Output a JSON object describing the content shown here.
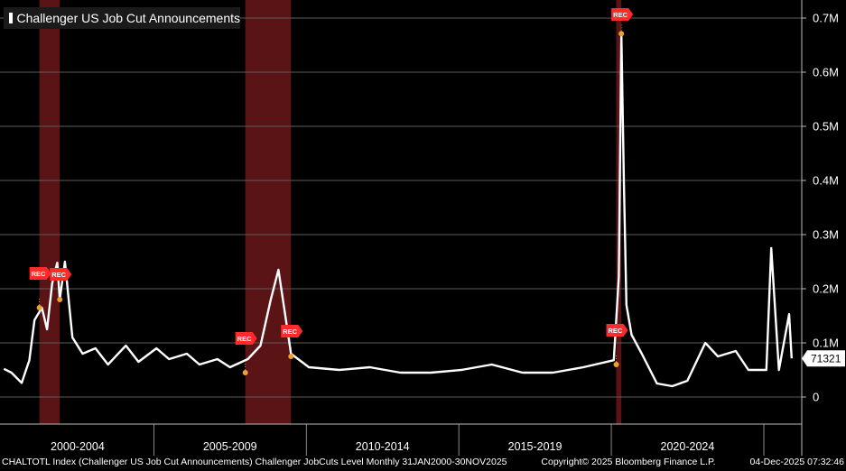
{
  "chart_data": {
    "type": "line",
    "title": "",
    "series": [
      {
        "name": "Challenger US Job Cut Announcements",
        "color": "#ffffff",
        "points": [
          [
            "2000-01-31",
            52000
          ],
          [
            "2000-04-30",
            45000
          ],
          [
            "2000-08-31",
            26000
          ],
          [
            "2000-11-30",
            68000
          ],
          [
            "2001-01-31",
            142000
          ],
          [
            "2001-04-30",
            165000
          ],
          [
            "2001-06-30",
            125000
          ],
          [
            "2001-08-31",
            210000
          ],
          [
            "2001-10-31",
            248000
          ],
          [
            "2001-11-30",
            180000
          ],
          [
            "2002-01-31",
            250000
          ],
          [
            "2002-04-30",
            110000
          ],
          [
            "2002-08-31",
            80000
          ],
          [
            "2003-01-31",
            90000
          ],
          [
            "2003-06-30",
            60000
          ],
          [
            "2004-01-31",
            95000
          ],
          [
            "2004-06-30",
            65000
          ],
          [
            "2005-01-31",
            90000
          ],
          [
            "2005-06-30",
            70000
          ],
          [
            "2006-01-31",
            80000
          ],
          [
            "2006-06-30",
            60000
          ],
          [
            "2007-01-31",
            70000
          ],
          [
            "2007-06-30",
            55000
          ],
          [
            "2008-01-31",
            70000
          ],
          [
            "2008-06-30",
            95000
          ],
          [
            "2008-10-31",
            180000
          ],
          [
            "2009-01-31",
            235000
          ],
          [
            "2009-06-30",
            80000
          ],
          [
            "2010-01-31",
            55000
          ],
          [
            "2011-01-31",
            50000
          ],
          [
            "2012-01-31",
            55000
          ],
          [
            "2013-01-31",
            45000
          ],
          [
            "2014-01-31",
            45000
          ],
          [
            "2015-01-31",
            50000
          ],
          [
            "2016-01-31",
            60000
          ],
          [
            "2017-01-31",
            45000
          ],
          [
            "2018-01-31",
            45000
          ],
          [
            "2019-01-31",
            55000
          ],
          [
            "2020-01-31",
            68000
          ],
          [
            "2020-03-31",
            222000
          ],
          [
            "2020-04-30",
            671000
          ],
          [
            "2020-05-31",
            397000
          ],
          [
            "2020-06-30",
            170000
          ],
          [
            "2020-08-31",
            115000
          ],
          [
            "2020-12-31",
            80000
          ],
          [
            "2021-06-30",
            25000
          ],
          [
            "2021-12-31",
            20000
          ],
          [
            "2022-06-30",
            30000
          ],
          [
            "2023-01-31",
            100000
          ],
          [
            "2023-06-30",
            75000
          ],
          [
            "2024-01-31",
            85000
          ],
          [
            "2024-06-30",
            50000
          ],
          [
            "2025-01-31",
            50000
          ],
          [
            "2025-03-31",
            275000
          ],
          [
            "2025-06-30",
            50000
          ],
          [
            "2025-10-31",
            153000
          ],
          [
            "2025-11-30",
            71321
          ]
        ]
      }
    ],
    "recessions": [
      [
        "2001-03-31",
        "2001-11-30"
      ],
      [
        "2007-12-31",
        "2009-06-30"
      ],
      [
        "2020-02-29",
        "2020-04-30"
      ]
    ],
    "rec_markers": [
      {
        "date": "2001-03-31",
        "value": 165000
      },
      {
        "date": "2001-11-30",
        "value": 180000
      },
      {
        "date": "2007-12-31",
        "value": 45000
      },
      {
        "date": "2009-06-30",
        "value": 75000
      },
      {
        "date": "2020-02-29",
        "value": 60000
      },
      {
        "date": "2020-04-30",
        "value": 671000
      }
    ],
    "ylim": [
      -50000,
      720000
    ],
    "y_ticks": [
      {
        "value": 0,
        "label": "0"
      },
      {
        "value": 100000,
        "label": "0.1M"
      },
      {
        "value": 200000,
        "label": "0.2M"
      },
      {
        "value": 300000,
        "label": "0.3M"
      },
      {
        "value": 400000,
        "label": "0.4M"
      },
      {
        "value": 500000,
        "label": "0.5M"
      },
      {
        "value": 600000,
        "label": "0.6M"
      },
      {
        "value": 700000,
        "label": "0.7M"
      }
    ],
    "x_range": [
      "1999-12-15",
      "2026-03-31"
    ],
    "x_separators": [
      "2005-01-01",
      "2010-01-01",
      "2015-01-01",
      "2020-01-01",
      "2025-01-01"
    ],
    "x_labels": [
      {
        "label": "2000-2004",
        "center": "2002-07-01"
      },
      {
        "label": "2005-2009",
        "center": "2007-07-01"
      },
      {
        "label": "2010-2014",
        "center": "2012-07-01"
      },
      {
        "label": "2015-2019",
        "center": "2017-07-01"
      },
      {
        "label": "2020-2024",
        "center": "2022-07-01"
      }
    ],
    "last_value": 71321,
    "last_value_label": "71321",
    "rec_label": "REC",
    "grid": true,
    "legend_position": "top-left"
  },
  "legend": {
    "label": "Challenger US Job Cut Announcements"
  },
  "footer": {
    "left": "CHALTOTL Index (Challenger US Job Cut Announcements) Challenger JobCuts Level Monthly 31JAN2000-30NOV2025",
    "copyright": "Copyright© 2025 Bloomberg Finance L.P.",
    "timestamp": "04-Dec-2025 07:32:46"
  }
}
